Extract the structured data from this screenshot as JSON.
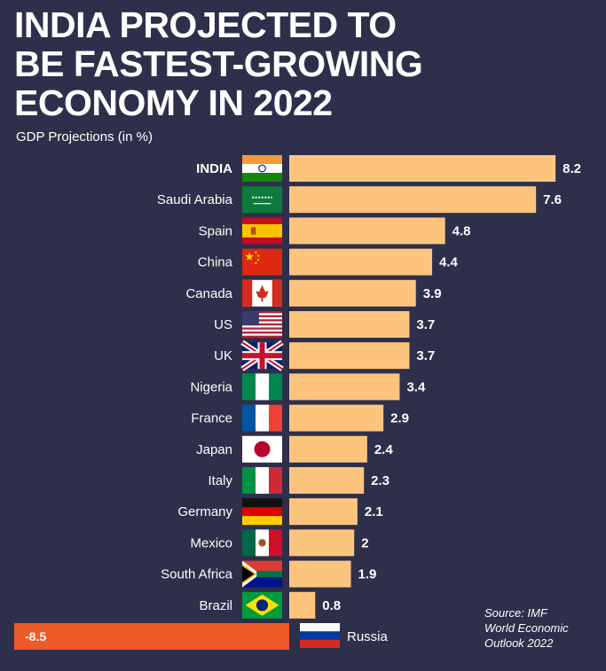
{
  "title_lines": [
    "INDIA PROJECTED TO",
    "BE FASTEST-GROWING",
    "ECONOMY IN 2022"
  ],
  "subtitle": "GDP Projections (in %)",
  "source_lines": [
    "Source: IMF",
    "World Economic",
    "Outlook 2022"
  ],
  "colors": {
    "background": "#2e2f4a",
    "bar_positive": "#fcc47d",
    "bar_negative": "#ee5a2a",
    "text": "#ffffff"
  },
  "chart_data": {
    "type": "bar",
    "orientation": "horizontal",
    "title": "INDIA PROJECTED TO BE FASTEST-GROWING ECONOMY IN 2022",
    "subtitle": "GDP Projections (in %)",
    "categories": [
      "INDIA",
      "Saudi Arabia",
      "Spain",
      "China",
      "Canada",
      "US",
      "UK",
      "Nigeria",
      "France",
      "Japan",
      "Italy",
      "Germany",
      "Mexico",
      "South Africa",
      "Brazil",
      "Russia"
    ],
    "values": [
      8.2,
      7.6,
      4.8,
      4.4,
      3.9,
      3.7,
      3.7,
      3.4,
      2.9,
      2.4,
      2.3,
      2.1,
      2,
      1.9,
      0.8,
      -8.5
    ],
    "value_labels": [
      "8.2",
      "7.6",
      "4.8",
      "4.4",
      "3.9",
      "3.7",
      "3.7",
      "3.4",
      "2.9",
      "2.4",
      "2.3",
      "2.1",
      "2",
      "1.9",
      "0.8",
      "-8.5"
    ],
    "flags": [
      "india-flag-icon",
      "saudi-arabia-flag-icon",
      "spain-flag-icon",
      "china-flag-icon",
      "canada-flag-icon",
      "us-flag-icon",
      "uk-flag-icon",
      "nigeria-flag-icon",
      "france-flag-icon",
      "japan-flag-icon",
      "italy-flag-icon",
      "germany-flag-icon",
      "mexico-flag-icon",
      "south-africa-flag-icon",
      "brazil-flag-icon",
      "russia-flag-icon"
    ],
    "highlight": "INDIA",
    "xlim": [
      -8.5,
      8.2
    ],
    "xlabel": "",
    "ylabel": "",
    "grid": false
  }
}
